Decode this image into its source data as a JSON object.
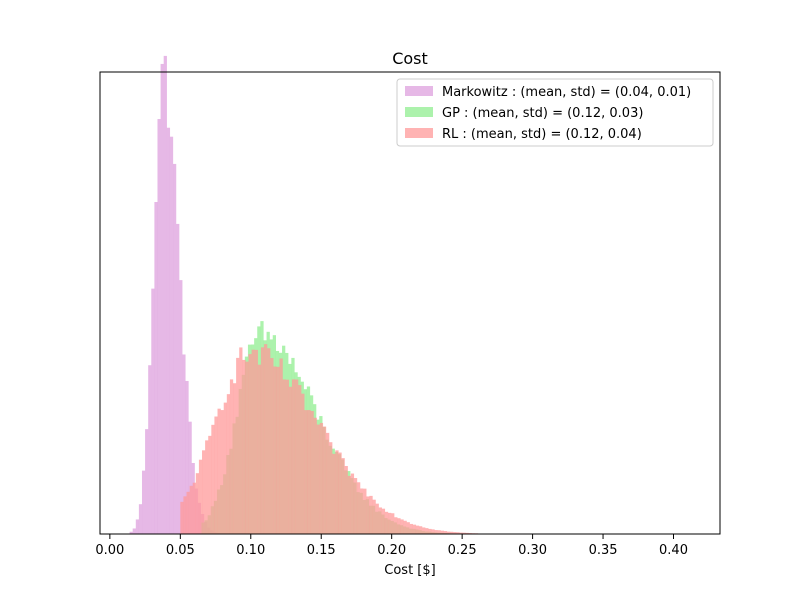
{
  "chart_data": {
    "type": "histogram",
    "title": "Cost",
    "xlabel": "Cost [$]",
    "ylabel": "",
    "xlim": [
      -0.007,
      0.433
    ],
    "ylim": [
      0,
      1.0
    ],
    "y_ticks_visible": false,
    "grid": false,
    "legend_placement": "top-right",
    "x_ticks": [
      0.0,
      0.05,
      0.1,
      0.15,
      0.2,
      0.25,
      0.3,
      0.35,
      0.4
    ],
    "x_tick_labels": [
      "0.00",
      "0.05",
      "0.10",
      "0.15",
      "0.20",
      "0.25",
      "0.30",
      "0.35",
      "0.40"
    ],
    "overlap_color": "#c78a7a",
    "series": [
      {
        "name": "Markowitz",
        "legend_label": "Markowitz : (mean, std) = (0.04, 0.01)",
        "color": "#dda0dd",
        "peak_x": 0.039,
        "x_range": [
          0.014,
          0.085
        ],
        "mode": 0.038,
        "width_left": 0.007,
        "width_right": 0.011,
        "peak_height": 0.995
      },
      {
        "name": "GP",
        "legend_label": "GP : (mean, std) = (0.12, 0.03)",
        "color": "#90ee90",
        "peak_x": 0.107,
        "x_range": [
          0.065,
          0.3
        ],
        "mode": 0.107,
        "width_left": 0.017,
        "width_right": 0.04,
        "peak_height": 0.43
      },
      {
        "name": "RL",
        "legend_label": "RL : (mean, std) = (0.12, 0.04)",
        "color": "#ff9999",
        "peak_x": 0.1,
        "x_range": [
          0.05,
          0.4
        ],
        "mode": 0.1,
        "width_left": 0.026,
        "width_right": 0.048,
        "peak_height": 0.39
      }
    ]
  }
}
